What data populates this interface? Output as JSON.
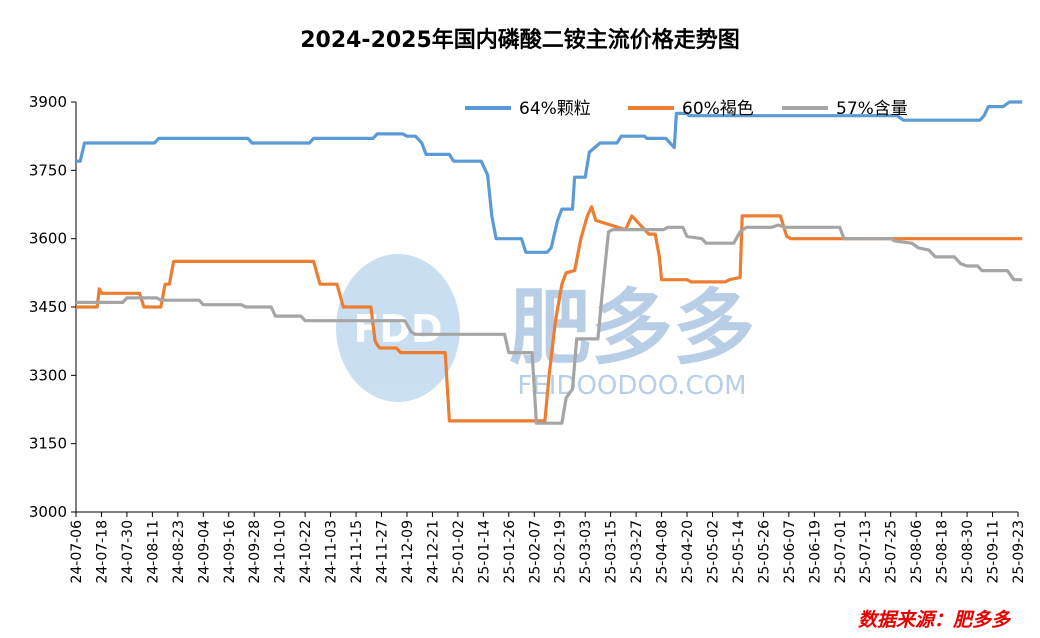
{
  "chart_data": {
    "type": "line",
    "title": "2024-2025年国内磷酸二铵主流价格走势图",
    "source_label": "数据来源：肥多多",
    "watermark": {
      "letters": "FDD",
      "name": "肥多多",
      "site": "FEIDOODOO.COM"
    },
    "legend_position": "top-right",
    "grid": false,
    "ylim": [
      3000,
      3900
    ],
    "yticks": [
      3000,
      3150,
      3300,
      3450,
      3600,
      3750,
      3900
    ],
    "xticks": [
      "24-07-06",
      "24-07-18",
      "24-07-30",
      "24-08-11",
      "24-08-23",
      "24-09-04",
      "24-09-16",
      "24-09-28",
      "24-10-10",
      "24-10-22",
      "24-11-03",
      "24-11-15",
      "24-11-27",
      "24-12-09",
      "24-12-21",
      "25-01-02",
      "25-01-14",
      "25-01-26",
      "25-02-07",
      "25-02-19",
      "25-03-03",
      "25-03-15",
      "25-03-27",
      "25-04-08",
      "25-04-20",
      "25-05-02",
      "25-05-14",
      "25-05-26",
      "25-06-07",
      "25-06-19",
      "25-07-01",
      "25-07-13",
      "25-07-25",
      "25-08-06",
      "25-08-18",
      "25-08-30",
      "25-09-11",
      "25-09-23"
    ],
    "series": [
      {
        "name": "64%颗粒",
        "color": "#5b9bd5",
        "points": [
          [
            "24-07-06",
            3770
          ],
          [
            "24-07-08",
            3770
          ],
          [
            "24-07-10",
            3810
          ],
          [
            "24-08-12",
            3810
          ],
          [
            "24-08-14",
            3820
          ],
          [
            "24-09-25",
            3820
          ],
          [
            "24-09-27",
            3810
          ],
          [
            "24-10-24",
            3810
          ],
          [
            "24-10-26",
            3820
          ],
          [
            "24-11-23",
            3820
          ],
          [
            "24-11-25",
            3830
          ],
          [
            "24-12-07",
            3830
          ],
          [
            "24-12-09",
            3825
          ],
          [
            "24-12-13",
            3825
          ],
          [
            "24-12-16",
            3810
          ],
          [
            "24-12-18",
            3785
          ],
          [
            "24-12-29",
            3785
          ],
          [
            "24-12-31",
            3770
          ],
          [
            "25-01-13",
            3770
          ],
          [
            "25-01-16",
            3740
          ],
          [
            "25-01-18",
            3650
          ],
          [
            "25-01-20",
            3600
          ],
          [
            "25-02-01",
            3600
          ],
          [
            "25-02-03",
            3570
          ],
          [
            "25-02-13",
            3570
          ],
          [
            "25-02-15",
            3580
          ],
          [
            "25-02-18",
            3640
          ],
          [
            "25-02-20",
            3665
          ],
          [
            "25-02-25",
            3665
          ],
          [
            "25-02-26",
            3735
          ],
          [
            "25-03-03",
            3735
          ],
          [
            "25-03-05",
            3790
          ],
          [
            "25-03-10",
            3810
          ],
          [
            "25-03-18",
            3810
          ],
          [
            "25-03-20",
            3825
          ],
          [
            "25-03-31",
            3825
          ],
          [
            "25-04-01",
            3820
          ],
          [
            "25-04-10",
            3820
          ],
          [
            "25-04-12",
            3810
          ],
          [
            "25-04-14",
            3800
          ],
          [
            "25-04-15",
            3875
          ],
          [
            "25-04-20",
            3875
          ],
          [
            "25-04-21",
            3870
          ],
          [
            "25-07-28",
            3870
          ],
          [
            "25-07-31",
            3860
          ],
          [
            "25-09-05",
            3860
          ],
          [
            "25-09-07",
            3870
          ],
          [
            "25-09-09",
            3890
          ],
          [
            "25-09-16",
            3890
          ],
          [
            "25-09-19",
            3900
          ],
          [
            "25-09-25",
            3900
          ]
        ]
      },
      {
        "name": "60%褐色",
        "color": "#ed7d31",
        "points": [
          [
            "24-07-06",
            3450
          ],
          [
            "24-07-16",
            3450
          ],
          [
            "24-07-17",
            3490
          ],
          [
            "24-07-18",
            3480
          ],
          [
            "24-08-05",
            3480
          ],
          [
            "24-08-07",
            3450
          ],
          [
            "24-08-15",
            3450
          ],
          [
            "24-08-17",
            3500
          ],
          [
            "24-08-19",
            3500
          ],
          [
            "24-08-21",
            3550
          ],
          [
            "24-10-26",
            3550
          ],
          [
            "24-10-29",
            3500
          ],
          [
            "24-11-06",
            3500
          ],
          [
            "24-11-09",
            3450
          ],
          [
            "24-11-22",
            3450
          ],
          [
            "24-11-24",
            3375
          ],
          [
            "24-11-26",
            3360
          ],
          [
            "24-12-04",
            3360
          ],
          [
            "24-12-06",
            3350
          ],
          [
            "24-12-27",
            3350
          ],
          [
            "24-12-29",
            3200
          ],
          [
            "25-02-09",
            3200
          ],
          [
            "25-02-12",
            3200
          ],
          [
            "25-02-14",
            3300
          ],
          [
            "25-02-17",
            3420
          ],
          [
            "25-02-20",
            3500
          ],
          [
            "25-02-22",
            3525
          ],
          [
            "25-02-26",
            3530
          ],
          [
            "25-03-01",
            3600
          ],
          [
            "25-03-04",
            3650
          ],
          [
            "25-03-06",
            3670
          ],
          [
            "25-03-08",
            3640
          ],
          [
            "25-03-22",
            3620
          ],
          [
            "25-03-25",
            3650
          ],
          [
            "25-03-28",
            3635
          ],
          [
            "25-04-02",
            3610
          ],
          [
            "25-04-05",
            3610
          ],
          [
            "25-04-07",
            3560
          ],
          [
            "25-04-08",
            3510
          ],
          [
            "25-04-20",
            3510
          ],
          [
            "25-04-22",
            3505
          ],
          [
            "25-05-08",
            3505
          ],
          [
            "25-05-10",
            3510
          ],
          [
            "25-05-15",
            3515
          ],
          [
            "25-05-16",
            3650
          ],
          [
            "25-06-03",
            3650
          ],
          [
            "25-06-06",
            3605
          ],
          [
            "25-06-08",
            3600
          ],
          [
            "25-09-25",
            3600
          ]
        ]
      },
      {
        "name": "57%含量",
        "color": "#a5a5a5",
        "points": [
          [
            "24-07-06",
            3460
          ],
          [
            "24-07-28",
            3460
          ],
          [
            "24-07-30",
            3470
          ],
          [
            "24-08-13",
            3470
          ],
          [
            "24-08-15",
            3465
          ],
          [
            "24-09-02",
            3465
          ],
          [
            "24-09-04",
            3455
          ],
          [
            "24-09-22",
            3455
          ],
          [
            "24-09-24",
            3450
          ],
          [
            "24-10-06",
            3450
          ],
          [
            "24-10-08",
            3430
          ],
          [
            "24-10-20",
            3430
          ],
          [
            "24-10-22",
            3420
          ],
          [
            "24-12-08",
            3420
          ],
          [
            "24-12-11",
            3395
          ],
          [
            "24-12-13",
            3390
          ],
          [
            "25-01-24",
            3390
          ],
          [
            "25-01-26",
            3350
          ],
          [
            "25-02-06",
            3350
          ],
          [
            "25-02-08",
            3195
          ],
          [
            "25-02-20",
            3195
          ],
          [
            "25-02-22",
            3250
          ],
          [
            "25-02-25",
            3270
          ],
          [
            "25-02-27",
            3380
          ],
          [
            "25-03-09",
            3380
          ],
          [
            "25-03-11",
            3480
          ],
          [
            "25-03-14",
            3615
          ],
          [
            "25-03-16",
            3620
          ],
          [
            "25-04-09",
            3620
          ],
          [
            "25-04-11",
            3625
          ],
          [
            "25-04-18",
            3625
          ],
          [
            "25-04-20",
            3605
          ],
          [
            "25-04-27",
            3600
          ],
          [
            "25-04-29",
            3590
          ],
          [
            "25-05-12",
            3590
          ],
          [
            "25-05-15",
            3615
          ],
          [
            "25-05-18",
            3625
          ],
          [
            "25-05-30",
            3625
          ],
          [
            "25-06-02",
            3630
          ],
          [
            "25-06-05",
            3625
          ],
          [
            "25-07-01",
            3625
          ],
          [
            "25-07-03",
            3600
          ],
          [
            "25-07-25",
            3600
          ],
          [
            "25-07-27",
            3595
          ],
          [
            "25-08-04",
            3590
          ],
          [
            "25-08-07",
            3580
          ],
          [
            "25-08-12",
            3575
          ],
          [
            "25-08-15",
            3560
          ],
          [
            "25-08-24",
            3560
          ],
          [
            "25-08-27",
            3545
          ],
          [
            "25-08-30",
            3540
          ],
          [
            "25-09-04",
            3540
          ],
          [
            "25-09-06",
            3530
          ],
          [
            "25-09-18",
            3530
          ],
          [
            "25-09-21",
            3510
          ],
          [
            "25-09-25",
            3510
          ]
        ]
      }
    ]
  }
}
